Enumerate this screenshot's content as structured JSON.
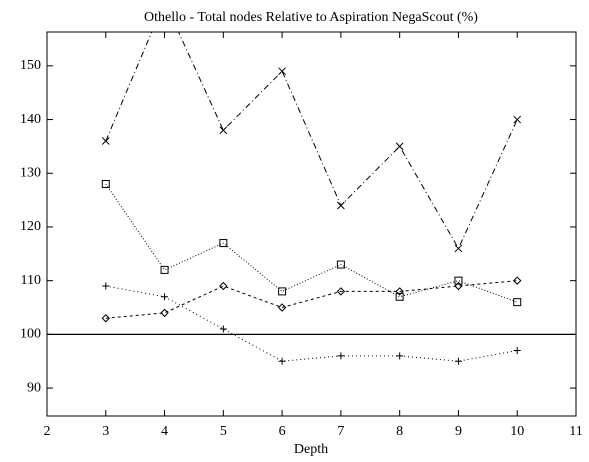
{
  "chart_data": {
    "type": "line",
    "title": "Othello - Total nodes Relative to Aspiration NegaScout (%)",
    "x_label": "Depth",
    "x": [
      3,
      4,
      5,
      6,
      7,
      8,
      9,
      10
    ],
    "series": [
      {
        "color": "#000000",
        "marker": "x",
        "dash": "6,3,1,3",
        "values": [
          136,
          162,
          138,
          149,
          124,
          135,
          116,
          140
        ]
      },
      {
        "color": "#000000",
        "marker": "square",
        "dash": "1,2",
        "values": [
          128,
          112,
          117,
          108,
          113,
          107,
          110,
          106
        ]
      },
      {
        "color": "#000000",
        "marker": "diamond",
        "dash": "3,3",
        "values": [
          103,
          104,
          109,
          105,
          108,
          108,
          109,
          110
        ]
      },
      {
        "color": "#000000",
        "marker": "plus",
        "dash": "1,3",
        "values": [
          109,
          107,
          101,
          95,
          96,
          96,
          95,
          97
        ]
      }
    ],
    "reference_line": 100,
    "xlim": [
      2,
      11
    ],
    "xticks": [
      2,
      3,
      4,
      5,
      6,
      7,
      8,
      9,
      10,
      11
    ],
    "ylim": [
      84.8,
      156.3
    ],
    "yticks": [
      90,
      100,
      110,
      120,
      130,
      140,
      150
    ]
  }
}
